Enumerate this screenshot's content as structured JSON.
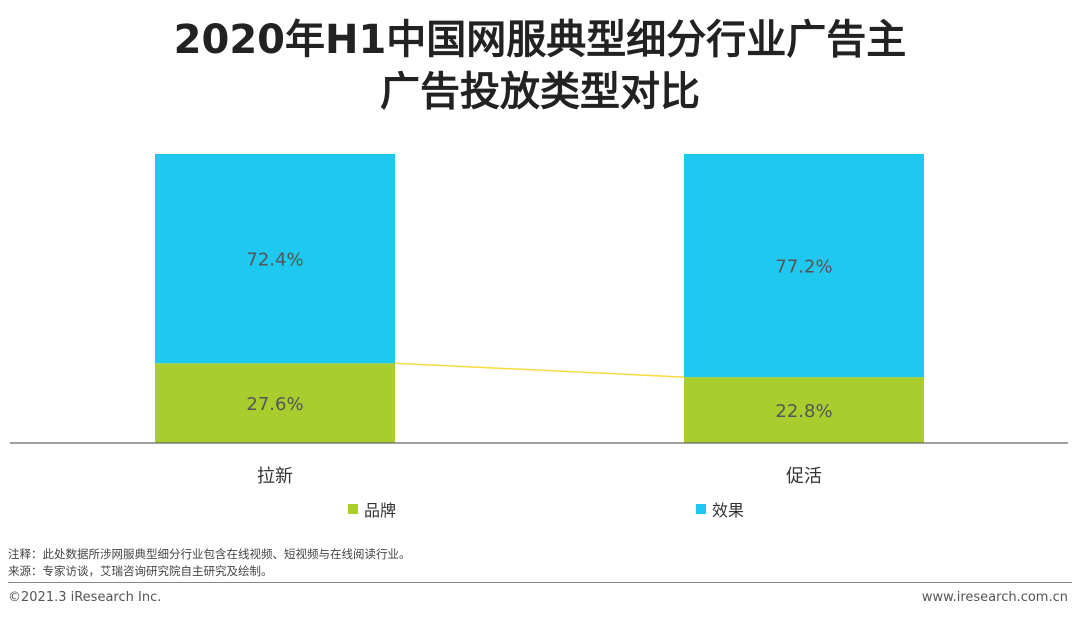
{
  "title": {
    "line1": "2020年H1中国网服典型细分行业广告主",
    "line2": "广告投放类型对比"
  },
  "chart_data": {
    "type": "bar",
    "stacked": true,
    "percent": true,
    "categories": [
      "拉新",
      "促活"
    ],
    "series": [
      {
        "name": "品牌",
        "values": [
          27.6,
          22.8
        ],
        "labels": [
          "27.6%",
          "22.8%"
        ],
        "color": "#a9cd2e"
      },
      {
        "name": "效果",
        "values": [
          72.4,
          77.2
        ],
        "labels": [
          "72.4%",
          "77.2%"
        ],
        "color": "#1ec8ef"
      }
    ],
    "ylim": [
      0,
      100
    ],
    "connector_color": "#f5dc3c",
    "xlabel": "",
    "ylabel": ""
  },
  "legend": [
    {
      "label": "品牌",
      "color": "#a9cd2e"
    },
    {
      "label": "效果",
      "color": "#1ec8ef"
    }
  ],
  "notes": {
    "note": "注释：此处数据所涉网服典型细分行业包含在线视频、短视频与在线阅读行业。",
    "source": "来源：专家访谈，艾瑞咨询研究院自主研究及绘制。"
  },
  "footer": {
    "copyright": "©2021.3 iResearch Inc.",
    "site": "www.iresearch.com.cn"
  }
}
